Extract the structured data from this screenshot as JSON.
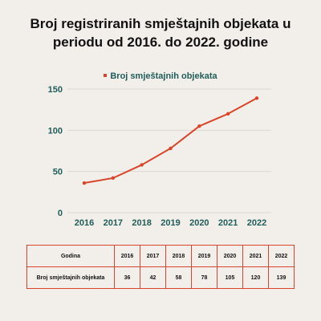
{
  "title": {
    "line1": "Broj registriranih smještajnih objekata u",
    "line2": "periodu od 2016. do 2022. godine"
  },
  "colors": {
    "series": "#d9452b",
    "axis_text": "#1f5c5a",
    "background": "#f2efea",
    "gridline": "#dcd8d2"
  },
  "chart_data": {
    "type": "line",
    "title": "Broj registriranih smještajnih objekata u periodu od 2016. do 2022. godine",
    "categories": [
      "2016",
      "2017",
      "2018",
      "2019",
      "2020",
      "2021",
      "2022"
    ],
    "series": [
      {
        "name": "Broj smještajnih objekata",
        "values": [
          36,
          42,
          58,
          78,
          105,
          120,
          139
        ]
      }
    ],
    "ylim": [
      0,
      150
    ],
    "yticks": [
      0,
      50,
      100,
      150
    ],
    "grid": true,
    "legend": "top-center"
  },
  "table": {
    "header_label": "Godina",
    "row_label": "Broj smještajnih objekata",
    "years": [
      "2016",
      "2017",
      "2018",
      "2019",
      "2020",
      "2021",
      "2022"
    ],
    "values": [
      "36",
      "42",
      "58",
      "78",
      "105",
      "120",
      "139"
    ]
  }
}
